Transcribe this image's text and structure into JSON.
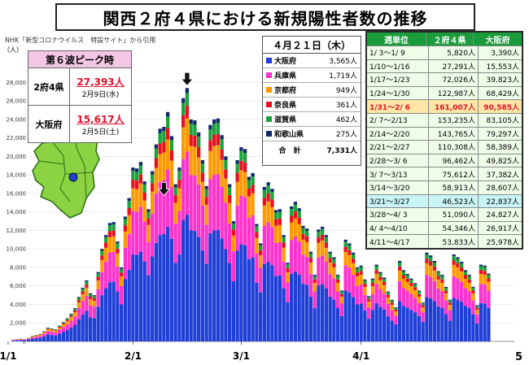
{
  "title": "関西２府４県における新規陽性者数の推移",
  "source": "NHK「新型コロナウイルス　特設サイト」から引用",
  "unit": "（人）",
  "page_number": "5",
  "peak": {
    "heading": "第６波ピーク時",
    "rows": [
      {
        "label": "2府4県",
        "value": "27,393人",
        "date": "2月9日(水)"
      },
      {
        "label": "大阪府",
        "value": "15,617人",
        "date": "2月5日(土)"
      }
    ]
  },
  "daily": {
    "heading": "４月２１日（木）",
    "rows": [
      {
        "name": "大阪府",
        "value": "3,565人",
        "color": "#1f3fd6"
      },
      {
        "name": "兵庫県",
        "value": "1,719人",
        "color": "#ff33cc"
      },
      {
        "name": "京都府",
        "value": "949人",
        "color": "#ff9900"
      },
      {
        "name": "奈良県",
        "value": "361人",
        "color": "#e8101f"
      },
      {
        "name": "滋賀県",
        "value": "462人",
        "color": "#1aa33a"
      },
      {
        "name": "和歌山県",
        "value": "275人",
        "color": "#102a6b"
      }
    ],
    "total_label": "合　計",
    "total_value": "7,331人"
  },
  "weekly": {
    "headers": [
      "週単位",
      "２府４県",
      "大阪府"
    ],
    "header_color": "#1a9c3a",
    "rows": [
      {
        "week": "1/ 3～1/ 9",
        "kansai": "5,820人",
        "osaka": "3,390人",
        "hl": ""
      },
      {
        "week": "1/10～1/16",
        "kansai": "27,291人",
        "osaka": "15,553人",
        "hl": ""
      },
      {
        "week": "1/17～1/23",
        "kansai": "72,026人",
        "osaka": "39,823人",
        "hl": ""
      },
      {
        "week": "1/24～1/30",
        "kansai": "122,987人",
        "osaka": "68,429人",
        "hl": ""
      },
      {
        "week": "1/31～2/ 6",
        "kansai": "161,007人",
        "osaka": "90,585人",
        "hl": "orange"
      },
      {
        "week": "2/ 7～2/13",
        "kansai": "153,235人",
        "osaka": "83,105人",
        "hl": ""
      },
      {
        "week": "2/14～2/20",
        "kansai": "143,765人",
        "osaka": "79,297人",
        "hl": ""
      },
      {
        "week": "2/21～2/27",
        "kansai": "110,308人",
        "osaka": "58,389人",
        "hl": ""
      },
      {
        "week": "2/28～3/ 6",
        "kansai": "96,462人",
        "osaka": "49,825人",
        "hl": ""
      },
      {
        "week": "3/ 7～3/13",
        "kansai": "75,612人",
        "osaka": "37,382人",
        "hl": ""
      },
      {
        "week": "3/14～3/20",
        "kansai": "58,913人",
        "osaka": "28,607人",
        "hl": ""
      },
      {
        "week": "3/21～3/27",
        "kansai": "46,523人",
        "osaka": "22,837人",
        "hl": "blue"
      },
      {
        "week": "3/28～4/ 3",
        "kansai": "51,090人",
        "osaka": "24,827人",
        "hl": ""
      },
      {
        "week": "4/ 4～4/10",
        "kansai": "54,346人",
        "osaka": "26,917人",
        "hl": ""
      },
      {
        "week": "4/11～4/17",
        "kansai": "53,833人",
        "osaka": "25,978人",
        "hl": ""
      }
    ]
  },
  "chart_data": {
    "type": "bar",
    "stacked": true,
    "x_tick_labels": [
      "1/1",
      "2/1",
      "3/1",
      "4/1"
    ],
    "y_ticks": [
      0,
      2000,
      4000,
      6000,
      8000,
      10000,
      12000,
      14000,
      16000,
      18000,
      20000,
      22000,
      24000,
      26000,
      28000
    ],
    "y_tick_labels": [
      "0",
      "2,000",
      "4,000",
      "6,000",
      "8,000",
      "10,000",
      "12,000",
      "14,000",
      "16,000",
      "18,000",
      "20,000",
      "22,000",
      "24,000",
      "26,000",
      "28,000"
    ],
    "ylim": [
      0,
      29000
    ],
    "series_names": [
      "大阪府",
      "兵庫県",
      "京都府",
      "奈良県",
      "滋賀県",
      "和歌山県"
    ],
    "colors": [
      "#1f3fd6",
      "#ff33cc",
      "#ff9900",
      "#e8101f",
      "#1aa33a",
      "#102a6b"
    ],
    "daily_totals": [
      200,
      250,
      300,
      250,
      400,
      600,
      700,
      800,
      1100,
      1500,
      1400,
      1300,
      1700,
      2100,
      2500,
      3000,
      3600,
      4800,
      5800,
      6600,
      5200,
      5000,
      7500,
      10000,
      11500,
      12800,
      12900,
      10800,
      8000,
      13500,
      15500,
      18800,
      18700,
      19400,
      17300,
      14300,
      18400,
      21300,
      23000,
      23200,
      24800,
      22200,
      17000,
      18800,
      26300,
      27400,
      24000,
      23900,
      22600,
      19600,
      16800,
      23400,
      24000,
      24100,
      22300,
      20000,
      17000,
      13000,
      19600,
      21000,
      20800,
      17800,
      18200,
      12700,
      10600,
      16700,
      17200,
      16500,
      14200,
      14300,
      11500,
      8500,
      14600,
      15100,
      14400,
      12500,
      12200,
      9700,
      7200,
      12100,
      12400,
      11500,
      9700,
      9100,
      7200,
      5500,
      11000,
      10600,
      9600,
      8000,
      8200,
      6700,
      4900,
      6800,
      8300,
      7500,
      6900,
      5400,
      4500,
      3700,
      8700,
      7700,
      7300,
      6800,
      6300,
      5500,
      4200,
      9600,
      9300,
      8700,
      7600,
      7200,
      5900,
      4500,
      9400,
      9100,
      8600,
      7700,
      7200,
      5900,
      3900,
      8300,
      8200,
      7331
    ],
    "series": [
      {
        "name": "大阪府",
        "share": 0.5
      },
      {
        "name": "兵庫県",
        "share": 0.25
      },
      {
        "name": "京都府",
        "share": 0.13
      },
      {
        "name": "奈良県",
        "share": 0.05
      },
      {
        "name": "滋賀県",
        "share": 0.05
      },
      {
        "name": "和歌山県",
        "share": 0.02
      }
    ],
    "annotations": [
      "peak-arrow-2府4県",
      "peak-arrow-大阪府"
    ]
  }
}
